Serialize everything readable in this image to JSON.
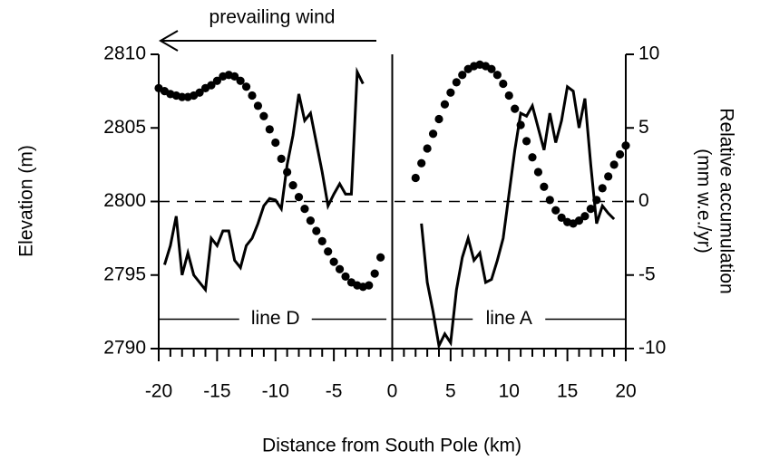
{
  "chart_data": {
    "type": "line",
    "xlabel": "Distance from South Pole  (km)",
    "ylabel": "Elevation  (m)",
    "y2label": [
      "Relative accumulation",
      "(mm w.e./yr)"
    ],
    "xlim": [
      -20,
      20
    ],
    "xticks": [
      -20,
      -15,
      -10,
      -5,
      0,
      5,
      10,
      15,
      20
    ],
    "xminorticks": [
      -19,
      -18,
      -17,
      -16,
      -14,
      -13,
      -12,
      -11,
      -9,
      -8,
      -7,
      -6,
      -4,
      -3,
      -2,
      -1,
      1,
      2,
      3,
      4,
      6,
      7,
      8,
      9,
      11,
      12,
      13,
      14,
      16,
      17,
      18,
      19
    ],
    "ylim": [
      2790,
      2810
    ],
    "yticks": [
      2790,
      2795,
      2800,
      2805,
      2810
    ],
    "y2lim": [
      -10,
      10
    ],
    "y2ticks": [
      -10,
      -5,
      0,
      5,
      10
    ],
    "color": "#000000",
    "divider_x": 0,
    "dashed_y2": 0,
    "wind_label": "prevailing wind",
    "annotations": [
      {
        "text": "line D",
        "x": -10,
        "y": 2792,
        "from": -20,
        "to": -0.5
      },
      {
        "text": "line A",
        "x": 10,
        "y": 2792,
        "from": 0,
        "to": 20
      }
    ],
    "series": [
      {
        "style": "dots",
        "axis": "y",
        "x": [
          -20,
          -19.5,
          -19,
          -18.5,
          -18,
          -17.5,
          -17,
          -16.5,
          -16,
          -15.5,
          -15,
          -14.5,
          -14,
          -13.5,
          -13,
          -12.5,
          -12,
          -11.5,
          -11,
          -10.5,
          -10,
          -9.5,
          -9,
          -8.5,
          -8,
          -7.5,
          -7,
          -6.5,
          -6,
          -5.5,
          -5,
          -4.5,
          -4,
          -3.5,
          -3,
          -2.5,
          -2,
          -1.5,
          -1
        ],
        "values": [
          2807.7,
          2807.5,
          2807.3,
          2807.2,
          2807.1,
          2807.1,
          2807.2,
          2807.4,
          2807.7,
          2807.9,
          2808.2,
          2808.5,
          2808.6,
          2808.5,
          2808.2,
          2807.8,
          2807.2,
          2806.5,
          2805.8,
          2804.9,
          2804.0,
          2802.9,
          2802.0,
          2801.1,
          2800.3,
          2799.5,
          2798.7,
          2798.0,
          2797.3,
          2796.6,
          2795.9,
          2795.4,
          2794.9,
          2794.5,
          2794.3,
          2794.2,
          2794.3,
          2795.1,
          2796.2
        ]
      },
      {
        "style": "dots",
        "axis": "y",
        "x": [
          2,
          2.5,
          3,
          3.5,
          4,
          4.5,
          5,
          5.5,
          6,
          6.5,
          7,
          7.5,
          8,
          8.5,
          9,
          9.5,
          10,
          10.5,
          11,
          11.5,
          12,
          12.5,
          13,
          13.5,
          14,
          14.5,
          15,
          15.5,
          16,
          16.5,
          17,
          17.5,
          18,
          18.5,
          19,
          19.5,
          20
        ],
        "values": [
          2801.6,
          2802.6,
          2803.6,
          2804.6,
          2805.6,
          2806.6,
          2807.4,
          2808.1,
          2808.6,
          2809.0,
          2809.2,
          2809.3,
          2809.2,
          2809.0,
          2808.6,
          2808.0,
          2807.2,
          2806.3,
          2805.2,
          2804.1,
          2803.0,
          2802.0,
          2801.0,
          2800.1,
          2799.4,
          2798.9,
          2798.6,
          2798.5,
          2798.7,
          2799.0,
          2799.5,
          2800.1,
          2800.9,
          2801.7,
          2802.5,
          2803.2,
          2803.8
        ]
      },
      {
        "style": "line",
        "axis": "y2",
        "x": [
          -19.5,
          -19,
          -18.5,
          -18,
          -17.5,
          -17,
          -16.5,
          -16,
          -15.5,
          -15,
          -14.5,
          -14,
          -13.5,
          -13,
          -12.5,
          -12,
          -11.5,
          -11,
          -10.5,
          -10,
          -9.5,
          -9,
          -8.5,
          -8,
          -7.5,
          -7,
          -6.5,
          -6,
          -5.5,
          -5,
          -4.5,
          -4,
          -3.5,
          -3,
          -2.5
        ],
        "values": [
          -4.3,
          -3.0,
          -1.0,
          -5.0,
          -3.5,
          -5.0,
          -5.5,
          -6.0,
          -2.5,
          -3.0,
          -2.0,
          -2.0,
          -4.0,
          -4.5,
          -3.0,
          -2.5,
          -1.5,
          -0.3,
          0.2,
          0.1,
          -0.5,
          2.5,
          4.5,
          7.3,
          5.5,
          6.0,
          4.0,
          2.0,
          -0.3,
          0.5,
          1.2,
          0.5,
          0.5,
          8.8,
          8.0
        ]
      },
      {
        "style": "line",
        "axis": "y2",
        "x": [
          2.5,
          3,
          3.5,
          4,
          4.5,
          5,
          5.5,
          6,
          6.5,
          7,
          7.5,
          8,
          8.5,
          9,
          9.5,
          10,
          10.5,
          11,
          11.5,
          12,
          12.5,
          13,
          13.5,
          14,
          14.5,
          15,
          15.5,
          16,
          16.5,
          17,
          17.5,
          18,
          18.5,
          19
        ],
        "values": [
          -1.5,
          -5.5,
          -7.5,
          -9.8,
          -9.0,
          -9.6,
          -6.0,
          -3.8,
          -2.5,
          -4.0,
          -3.5,
          -5.5,
          -5.3,
          -4.0,
          -2.5,
          0.5,
          3.5,
          6.0,
          5.8,
          6.5,
          5.0,
          3.5,
          6.0,
          4.0,
          5.5,
          7.8,
          7.5,
          5.0,
          7.0,
          2.5,
          -1.5,
          -0.3,
          -0.8,
          -1.2
        ]
      }
    ]
  }
}
